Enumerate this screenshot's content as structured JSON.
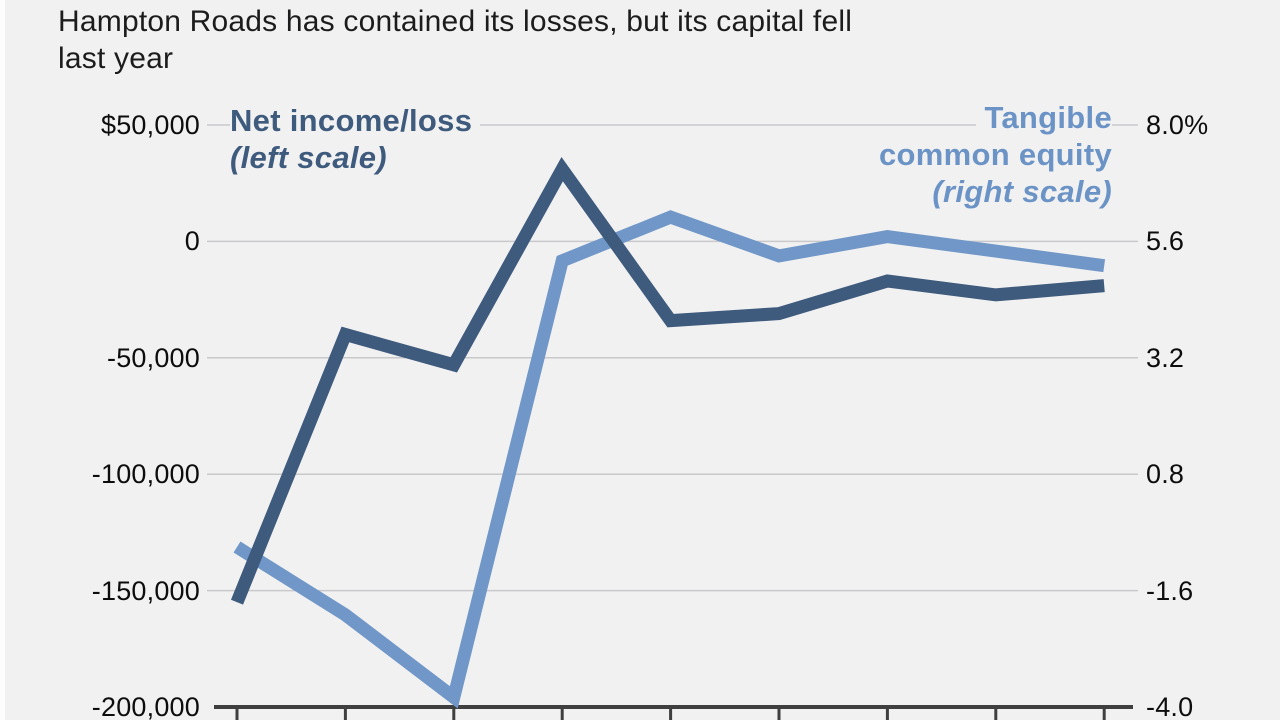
{
  "page": {
    "background": "#f1f1f2",
    "gridline_color": "#c9c9cb",
    "axis_color": "#3f3f3f"
  },
  "title": {
    "text": "Hampton Roads has contained its losses, but its capital fell last year",
    "lines": [
      "Hampton Roads has contained its losses, but its capital fell",
      "last year"
    ]
  },
  "legend": {
    "left_series": {
      "name": "Net income/loss",
      "scale_note": "(left scale)",
      "color": "#3e5a7c"
    },
    "right_series": {
      "name_lines": [
        "Tangible",
        "common equity"
      ],
      "scale_note": "(right scale)",
      "color": "#6b93c5"
    }
  },
  "left_axis": {
    "ticks": [
      "$50,000",
      "0",
      "-50,000",
      "-100,000",
      "-150,000",
      "-200,000"
    ]
  },
  "right_axis": {
    "ticks": [
      "8.0%",
      "5.6",
      "3.2",
      "0.8",
      "-1.6",
      "-4.0"
    ]
  },
  "chart_data": {
    "type": "line",
    "num_points": 9,
    "x_axis_labels_visible": false,
    "grid": true,
    "left_ylim": [
      -200000,
      50000
    ],
    "right_ylim": [
      -4.0,
      8.0
    ],
    "series": [
      {
        "name": "Net income/loss",
        "axis": "left",
        "color": "#3e5a7c",
        "values": [
          -155000,
          -40000,
          -53000,
          31000,
          -34000,
          -31000,
          -17000,
          -23000,
          -19000
        ]
      },
      {
        "name": "Tangible common equity",
        "axis": "right",
        "color": "#7097c7",
        "values": [
          -0.7,
          -2.1,
          -3.8,
          5.2,
          6.1,
          5.3,
          5.7,
          5.4,
          5.1
        ]
      }
    ]
  }
}
